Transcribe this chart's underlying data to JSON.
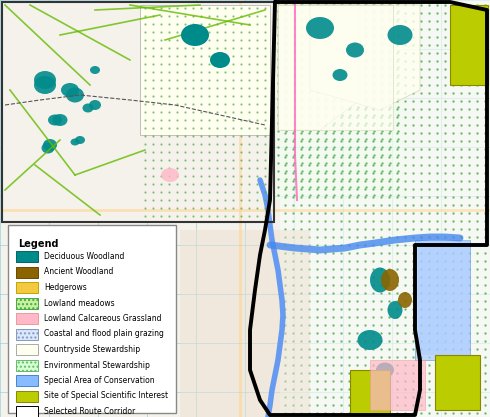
{
  "legend_title": "Legend",
  "legend_items": [
    {
      "label": "Deciduous Woodland",
      "facecolor": "#008B8B",
      "edgecolor": "#006666",
      "hatch": null
    },
    {
      "label": "Ancient Woodland",
      "facecolor": "#8B6400",
      "edgecolor": "#6B4800",
      "hatch": null
    },
    {
      "label": "Hedgerows",
      "facecolor": "#F5C842",
      "edgecolor": "#BBAA00",
      "hatch": null
    },
    {
      "label": "Lowland meadows",
      "facecolor": "#C8F0A0",
      "edgecolor": "#44AA44",
      "hatch": "...."
    },
    {
      "label": "Lowland Calcareous Grassland",
      "facecolor": "#FFB8C8",
      "edgecolor": "#EE9999",
      "hatch": null
    },
    {
      "label": "Coastal and flood plain grazing",
      "facecolor": "#D8E8FF",
      "edgecolor": "#8899BB",
      "hatch": "...."
    },
    {
      "label": "Countryside Stewardship",
      "facecolor": "#FFFFF0",
      "edgecolor": "#AAAAAA",
      "hatch": null
    },
    {
      "label": "Environmental Stewardship",
      "facecolor": "#D8FFD8",
      "edgecolor": "#66BB66",
      "hatch": "...."
    },
    {
      "label": "Special Area of Conservation",
      "facecolor": "#88BBFF",
      "edgecolor": "#4488CC",
      "hatch": null
    },
    {
      "label": "Site of Special Scientific Interest",
      "facecolor": "#BBCC00",
      "edgecolor": "#888800",
      "hatch": null
    },
    {
      "label": "Selected Route Corridor",
      "facecolor": "#FFFFFF",
      "edgecolor": "#000000",
      "hatch": null
    }
  ],
  "map_bg": "#FFFFFF",
  "legend_bg": "#FFFFFF",
  "legend_edge": "#888888",
  "figsize": [
    4.9,
    4.17
  ],
  "dpi": 100,
  "map_colors": {
    "background": "#F5F2EC",
    "grid_line": "#88CCDD",
    "corridor_outline": "#000000",
    "river": "#4488CC",
    "road_major": "#FFD080",
    "road_minor": "#FFFFFF",
    "urban": "#E8D8C8",
    "env_stewardship_dot": "#88CC88",
    "woodland_teal": "#008B8B",
    "ancient_woodland": "#8B6400",
    "sssi": "#BBCC00",
    "sac": "#88BBFF",
    "pink_grassland": "#FFB8C8",
    "cream_stewardship": "#FFFFF0"
  }
}
